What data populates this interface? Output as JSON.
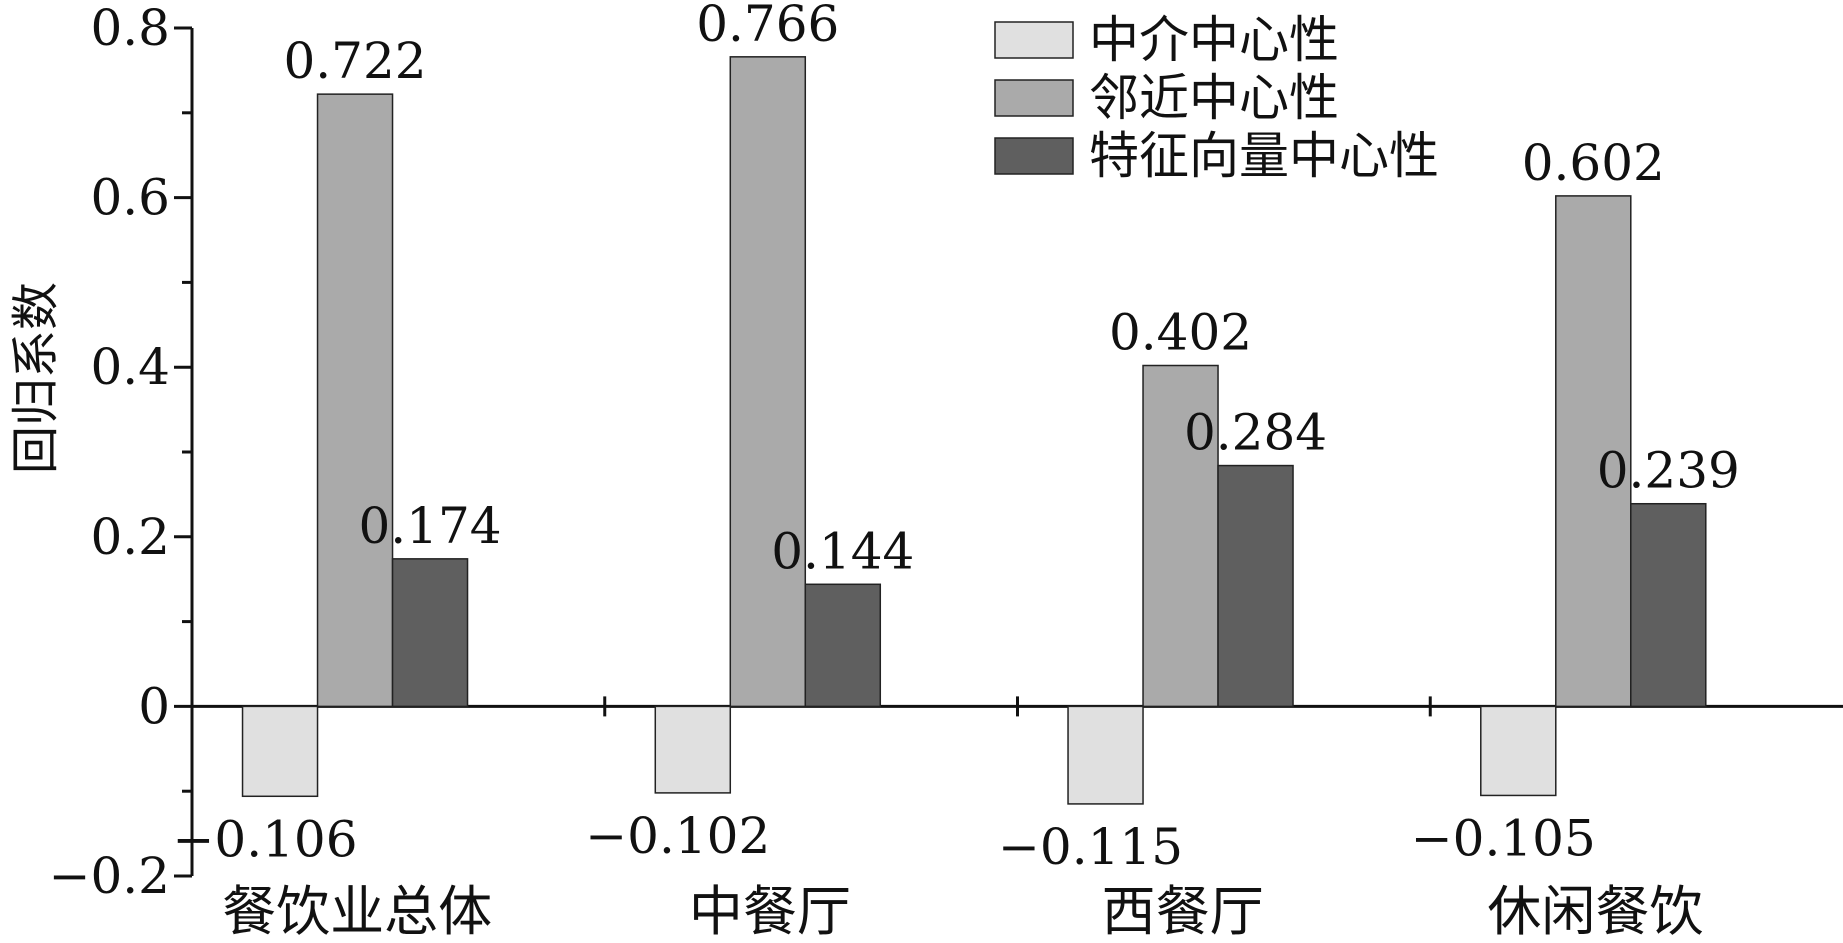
{
  "chart_data": {
    "type": "bar",
    "title": "",
    "xlabel": "",
    "ylabel": "回归系数",
    "ylim": [
      -0.2,
      0.8
    ],
    "yticks": [
      {
        "value": -0.2,
        "label": "−0.2"
      },
      {
        "value": 0,
        "label": "0"
      },
      {
        "value": 0.2,
        "label": "0.2"
      },
      {
        "value": 0.4,
        "label": "0.4"
      },
      {
        "value": 0.6,
        "label": "0.6"
      },
      {
        "value": 0.8,
        "label": "0.8"
      }
    ],
    "categories": [
      "餐饮业总体",
      "中餐厅",
      "西餐厅",
      "休闲餐饮"
    ],
    "series": [
      {
        "name": "中介中心性",
        "color": "#e0e0e0",
        "values": [
          -0.106,
          -0.102,
          -0.115,
          -0.105
        ],
        "labels": [
          "−0.106",
          "−0.102",
          "−0.115",
          "−0.105"
        ]
      },
      {
        "name": "邻近中心性",
        "color": "#aaaaaa",
        "values": [
          0.722,
          0.766,
          0.402,
          0.602
        ],
        "labels": [
          "0.722",
          "0.766",
          "0.402",
          "0.602"
        ]
      },
      {
        "name": "特征向量中心性",
        "color": "#5f5f5f",
        "values": [
          0.174,
          0.144,
          0.284,
          0.239
        ],
        "labels": [
          "0.174",
          "0.144",
          "0.284",
          "0.239"
        ]
      }
    ],
    "legend": "top-right",
    "grid": false
  }
}
